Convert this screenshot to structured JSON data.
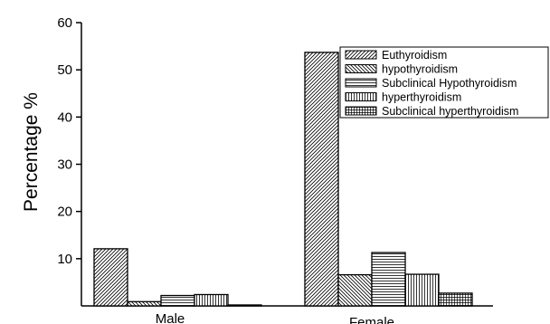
{
  "chart_data": {
    "type": "bar",
    "title": "",
    "xlabel": "",
    "ylabel": "Percentage %",
    "ylim": [
      0,
      60
    ],
    "yticks": [
      10,
      20,
      30,
      40,
      50,
      60
    ],
    "categories": [
      "Male",
      "Female"
    ],
    "series": [
      {
        "name": "Euthyroidism",
        "pattern": "diagonal-right",
        "values": [
          12.1,
          53.7
        ]
      },
      {
        "name": "hypothyroidism",
        "pattern": "diagonal-left",
        "values": [
          0.9,
          6.6
        ]
      },
      {
        "name": "Subclinical Hypothyroidism",
        "pattern": "horizontal",
        "values": [
          2.2,
          11.3
        ]
      },
      {
        "name": "hyperthyroidism",
        "pattern": "vertical",
        "values": [
          2.4,
          6.7
        ]
      },
      {
        "name": "Subclinical hyperthyroidism",
        "pattern": "grid",
        "values": [
          0.2,
          2.7
        ]
      }
    ],
    "legend_position": "top-right",
    "grid": false,
    "bar_edge_color": "#000000",
    "pattern_color": "#000000"
  }
}
